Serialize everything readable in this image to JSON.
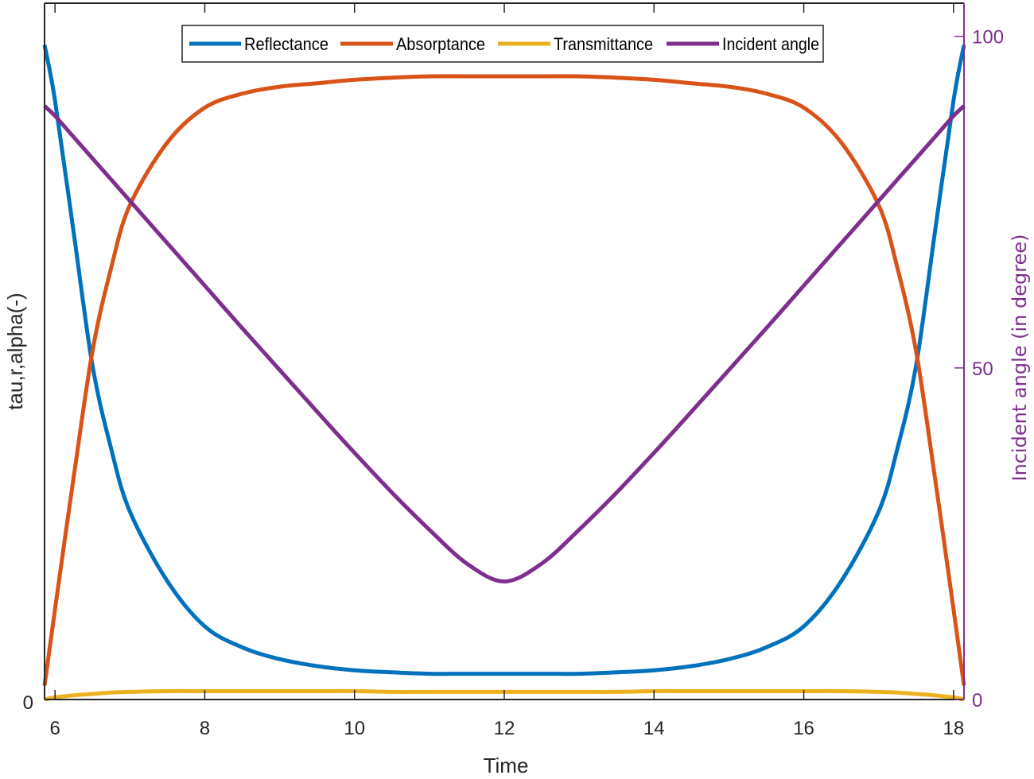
{
  "chart_data": {
    "type": "line",
    "title": "",
    "xlabel": "Time",
    "ylabel": "tau,r,alpha(-)",
    "ylabel_right": "Incident angle (in degree)",
    "xlim": [
      5.86,
      18.14
    ],
    "ylim": [
      0,
      1
    ],
    "ylim_right": [
      0,
      105
    ],
    "xticks": [
      6,
      8,
      10,
      12,
      14,
      16,
      18
    ],
    "yticks_left": [
      0
    ],
    "yticks_right": [
      0,
      50,
      100
    ],
    "grid": false,
    "legend_position": "top-center",
    "legend_orientation": "horizontal",
    "x": [
      5.86,
      6.0,
      6.25,
      6.5,
      6.75,
      7.0,
      7.5,
      8.0,
      8.5,
      9.0,
      9.5,
      10.0,
      10.5,
      11.0,
      11.5,
      12.0,
      12.5,
      13.0,
      13.5,
      14.0,
      14.5,
      15.0,
      15.5,
      16.0,
      16.5,
      17.0,
      17.25,
      17.5,
      17.75,
      18.0,
      18.14
    ],
    "series": [
      {
        "name": "Reflectance",
        "axis": "left",
        "color": "#0072bd",
        "values": [
          0.94,
          0.86,
          0.67,
          0.48,
          0.36,
          0.27,
          0.17,
          0.105,
          0.075,
          0.058,
          0.048,
          0.042,
          0.039,
          0.037,
          0.037,
          0.037,
          0.037,
          0.037,
          0.039,
          0.042,
          0.048,
          0.058,
          0.075,
          0.105,
          0.17,
          0.27,
          0.36,
          0.48,
          0.67,
          0.86,
          0.94
        ]
      },
      {
        "name": "Absorptance",
        "axis": "left",
        "color": "#d95319",
        "values": [
          0.02,
          0.13,
          0.32,
          0.5,
          0.62,
          0.71,
          0.8,
          0.85,
          0.87,
          0.88,
          0.885,
          0.89,
          0.893,
          0.895,
          0.895,
          0.895,
          0.895,
          0.895,
          0.893,
          0.89,
          0.885,
          0.88,
          0.87,
          0.85,
          0.8,
          0.71,
          0.62,
          0.5,
          0.32,
          0.13,
          0.02
        ]
      },
      {
        "name": "Transmittance",
        "axis": "left",
        "color": "#edb120",
        "values": [
          0.0,
          0.003,
          0.006,
          0.008,
          0.01,
          0.011,
          0.012,
          0.012,
          0.012,
          0.012,
          0.012,
          0.012,
          0.011,
          0.011,
          0.011,
          0.011,
          0.011,
          0.011,
          0.011,
          0.012,
          0.012,
          0.012,
          0.012,
          0.012,
          0.012,
          0.011,
          0.01,
          0.008,
          0.006,
          0.003,
          0.0
        ]
      },
      {
        "name": "Incident angle",
        "axis": "right",
        "color": "#7e2f8e",
        "values": [
          89.5,
          88.0,
          84.8,
          81.6,
          78.4,
          75.2,
          68.8,
          62.4,
          56.0,
          49.7,
          43.4,
          37.2,
          31.2,
          25.6,
          20.5,
          17.8,
          20.5,
          25.6,
          31.2,
          37.2,
          43.4,
          49.7,
          56.0,
          62.4,
          68.8,
          75.2,
          78.4,
          81.6,
          84.8,
          88.0,
          89.5
        ]
      }
    ]
  },
  "legend": {
    "items": [
      {
        "label": "Reflectance",
        "color": "#0072bd"
      },
      {
        "label": "Absorptance",
        "color": "#d95319"
      },
      {
        "label": "Transmittance",
        "color": "#edb120"
      },
      {
        "label": "Incident angle",
        "color": "#7e2f8e"
      }
    ]
  },
  "axes": {
    "x_title": "Time",
    "y_left_title": "tau,r,alpha(-)",
    "y_right_title": "Incident angle (in degree)",
    "x_tick_labels": [
      "6",
      "8",
      "10",
      "12",
      "14",
      "16",
      "18"
    ],
    "y_left_tick_labels": [
      "0"
    ],
    "y_right_tick_labels": [
      "0",
      "50",
      "100"
    ],
    "axis_color": "#262626",
    "right_axis_color": "#7e2f8e"
  }
}
